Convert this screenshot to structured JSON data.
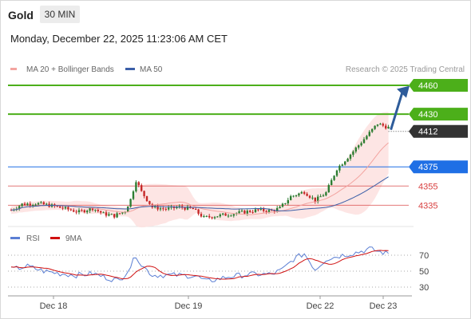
{
  "header": {
    "title": "Gold",
    "timeframe": "30 MIN",
    "datetime": "Monday, December 22, 2025 11:23:06 AM CET"
  },
  "legend": {
    "ma20": "MA 20 + Bollinger Bands",
    "ma50": "MA 50",
    "credit": "Research © 2025 Trading Central",
    "rsi": "RSI",
    "rsi_ma": "9MA"
  },
  "colors": {
    "up": "#2e7d32",
    "down": "#c62828",
    "band": "#fde0df",
    "ma20": "#f3a4a0",
    "ma50": "#3b5fa8",
    "target": "#4caf1a",
    "pivot": "#1f6fe5",
    "current": "#333333",
    "support": "#d84040",
    "rsi": "#5b7fd4",
    "rsi_ma": "#d01010",
    "arrow": "#2e5c9a"
  },
  "chart_data": [
    {
      "type": "candlestick",
      "instrument": "Gold",
      "interval": "30 MIN",
      "x_ticks": [
        "Dec 18",
        "Dec 19",
        "Dec 22",
        "Dec 23"
      ],
      "ylim": [
        4312,
        4470
      ],
      "levels": [
        {
          "value": 4460,
          "label": "4460",
          "kind": "resistance"
        },
        {
          "value": 4430,
          "label": "4430",
          "kind": "resistance"
        },
        {
          "value": 4412,
          "label": "4412",
          "kind": "last"
        },
        {
          "value": 4375,
          "label": "4375",
          "kind": "pivot"
        },
        {
          "value": 4355,
          "label": "4355",
          "kind": "support"
        },
        {
          "value": 4335,
          "label": "4335",
          "kind": "support"
        }
      ],
      "anchors": [
        [
          0,
          4330
        ],
        [
          4,
          4336
        ],
        [
          9,
          4337
        ],
        [
          14,
          4335
        ],
        [
          19,
          4332
        ],
        [
          25,
          4328
        ],
        [
          30,
          4332
        ],
        [
          34,
          4326
        ],
        [
          38,
          4324
        ],
        [
          42,
          4329
        ],
        [
          44,
          4341
        ],
        [
          46,
          4361
        ],
        [
          48,
          4349
        ],
        [
          52,
          4333
        ],
        [
          57,
          4331
        ],
        [
          62,
          4333
        ],
        [
          67,
          4331
        ],
        [
          71,
          4322
        ],
        [
          76,
          4324
        ],
        [
          81,
          4326
        ],
        [
          86,
          4328
        ],
        [
          91,
          4330
        ],
        [
          96,
          4329
        ],
        [
          99,
          4332
        ],
        [
          103,
          4344
        ],
        [
          108,
          4349
        ],
        [
          112,
          4340
        ],
        [
          116,
          4348
        ],
        [
          120,
          4373
        ],
        [
          125,
          4388
        ],
        [
          130,
          4404
        ],
        [
          135,
          4420
        ],
        [
          139,
          4416
        ]
      ]
    },
    {
      "type": "line",
      "indicator": "RSI",
      "series": [
        {
          "name": "RSI"
        },
        {
          "name": "9MA"
        }
      ],
      "y_ticks": [
        70,
        50,
        30
      ],
      "ylim": [
        20,
        80
      ],
      "rsi_anchors": [
        [
          0,
          52
        ],
        [
          6,
          56
        ],
        [
          12,
          50
        ],
        [
          18,
          47
        ],
        [
          24,
          45
        ],
        [
          30,
          47
        ],
        [
          36,
          41
        ],
        [
          40,
          38
        ],
        [
          44,
          56
        ],
        [
          46,
          70
        ],
        [
          48,
          58
        ],
        [
          52,
          45
        ],
        [
          60,
          45
        ],
        [
          68,
          44
        ],
        [
          72,
          37
        ],
        [
          80,
          43
        ],
        [
          88,
          46
        ],
        [
          96,
          46
        ],
        [
          100,
          52
        ],
        [
          104,
          65
        ],
        [
          108,
          72
        ],
        [
          112,
          52
        ],
        [
          116,
          65
        ],
        [
          122,
          70
        ],
        [
          128,
          74
        ],
        [
          132,
          78
        ],
        [
          136,
          74
        ],
        [
          139,
          72
        ]
      ]
    }
  ]
}
